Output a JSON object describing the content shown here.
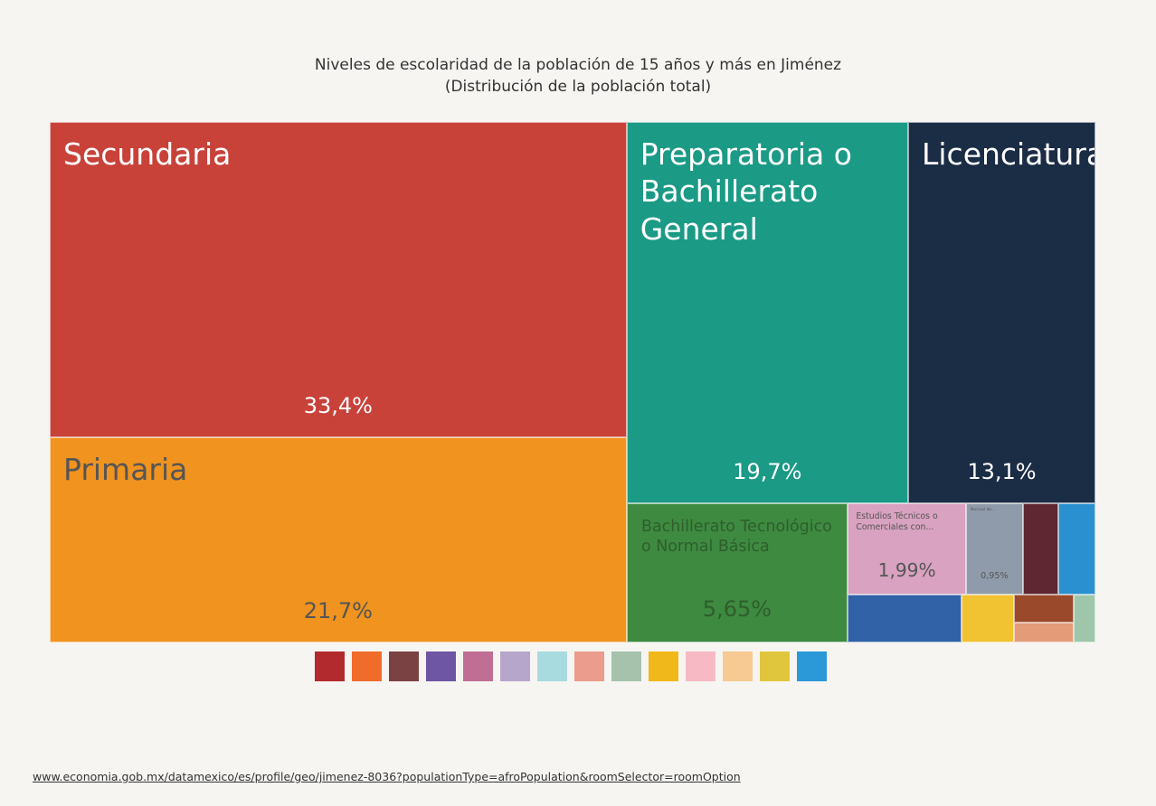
{
  "chart_data": {
    "type": "treemap",
    "title": "Niveles de escolaridad de la población de 15 años y más en Jiménez",
    "subtitle": "(Distribución de la población total)",
    "labels": [
      "Secundaria",
      "Primaria",
      "Preparatoria o Bachillerato General",
      "Licenciatura",
      "Bachillerato Tecnológico o Normal Básica",
      "Estudios Técnicos o Comerciales con...",
      null,
      "Normal de...",
      null,
      null,
      null,
      null,
      null,
      null
    ],
    "values": [
      33.4,
      21.7,
      19.7,
      13.1,
      5.65,
      1.99,
      1.0,
      0.95,
      0.62,
      0.6,
      0.46,
      0.3,
      0.22,
      0.19
    ],
    "value_labels": [
      "33,4%",
      "21,7%",
      "19,7%",
      "13,1%",
      "5,65%",
      "1,99%",
      null,
      "0,95%",
      null,
      null,
      null,
      null,
      null,
      null
    ],
    "colors": [
      "#c8423a",
      "#f0931f",
      "#1b9a86",
      "#1b2c45",
      "#3d8a40",
      "#d8a2c0",
      "#3162a8",
      "#8f9bab",
      "#2a90d0",
      "#5e2731",
      "#f1c232",
      "#9a4a2b",
      "#e39b78",
      "#9fc6aa"
    ],
    "label_colors": [
      "#ffffff",
      "#555555",
      "#ffffff",
      "#ffffff",
      "#2f5e2c",
      "#555555",
      "#ffffff",
      "#555555",
      "#ffffff",
      "#ffffff",
      "#555555",
      "#ffffff",
      "#555555",
      "#555555"
    ],
    "legend_colors": [
      "#b22a2e",
      "#ef6c2b",
      "#7b4244",
      "#6e56a4",
      "#c06e94",
      "#b7a6cc",
      "#a8dbe0",
      "#eb9c8c",
      "#a6c2ad",
      "#f1b81b",
      "#f7bac5",
      "#f6ca92",
      "#e0c63c",
      "#2b98d8"
    ],
    "source": "www.economia.gob.mx/datamexico/es/profile/geo/jimenez-8036?populationType=afroPopulation&roomSelector=roomOption"
  }
}
